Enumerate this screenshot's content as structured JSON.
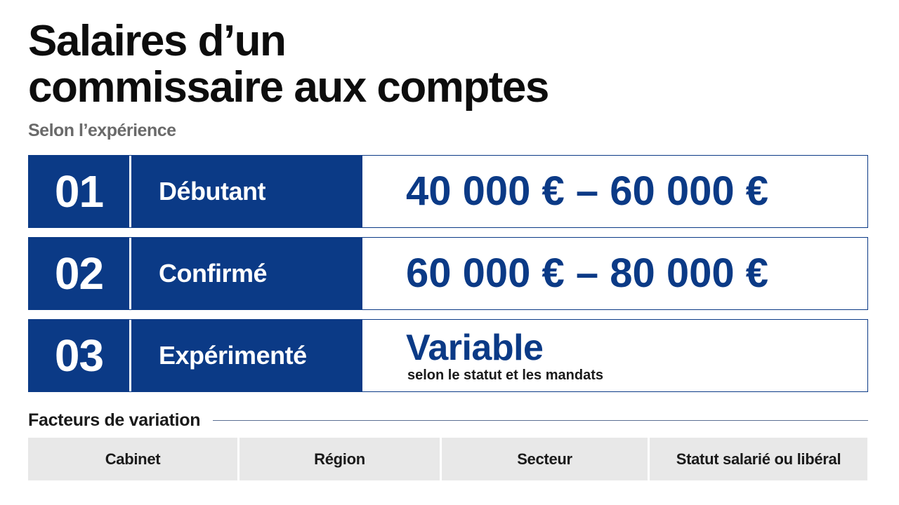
{
  "header": {
    "title_line1": "Salaires d’un",
    "title_line2": "commissaire aux comptes",
    "subtitle": "Selon l’expérience"
  },
  "levels": [
    {
      "number": "01",
      "label": "Débutant",
      "value": "40 000 € – 60 000 €"
    },
    {
      "number": "02",
      "label": "Confirmé",
      "value": "60 000 € – 80 000 €"
    },
    {
      "number": "03",
      "label": "Expérimenté",
      "value": "Variable",
      "note": "selon le statut et les mandats"
    }
  ],
  "factors": {
    "heading": "Facteurs de variation",
    "items": [
      "Cabinet",
      "Région",
      "Secteur",
      "Statut salarié ou libéral"
    ]
  },
  "colors": {
    "primary": "#0b3a86",
    "factor_bg": "#e8e8e8",
    "subtitle": "#6a6a6a"
  }
}
